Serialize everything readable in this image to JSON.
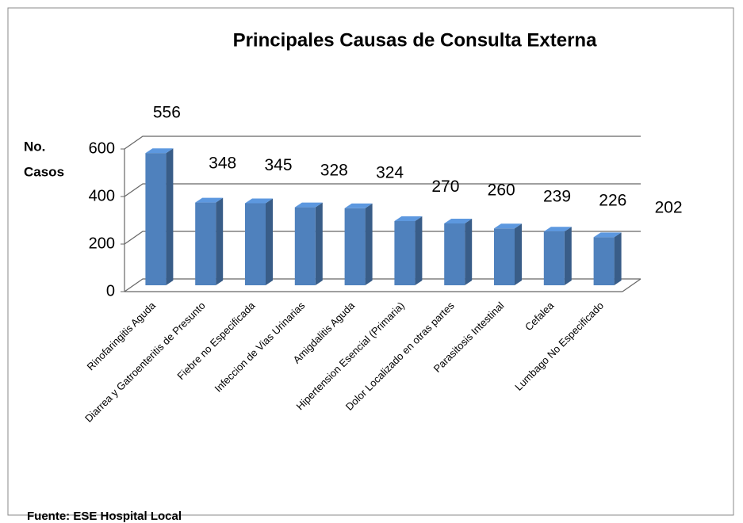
{
  "chart_data": {
    "type": "bar3d",
    "title": "Principales Causas de Consulta Externa",
    "y_label": [
      "No.",
      "Casos"
    ],
    "categories": [
      "Rinofaringitis Aguda",
      "Diarrea y Gatroenteritis de Presunto",
      "Fiebre no Especificada",
      "Infeccion de Vias Urinarias",
      "Amigdalitis Aguda",
      "Hipertension Esencial (Primaria)",
      "Dolor Localizado en otras partes",
      "Parasitosis Intestinal",
      "Cefalea",
      "Lumbago No Especificado"
    ],
    "values": [
      556,
      348,
      345,
      328,
      324,
      270,
      260,
      239,
      226,
      202
    ],
    "color": "#4f81bd",
    "ylim": [
      0,
      600
    ],
    "yticks": [
      0,
      200,
      400,
      600
    ],
    "grid": true,
    "source": "Fuente:  ESE Hospital Local"
  }
}
